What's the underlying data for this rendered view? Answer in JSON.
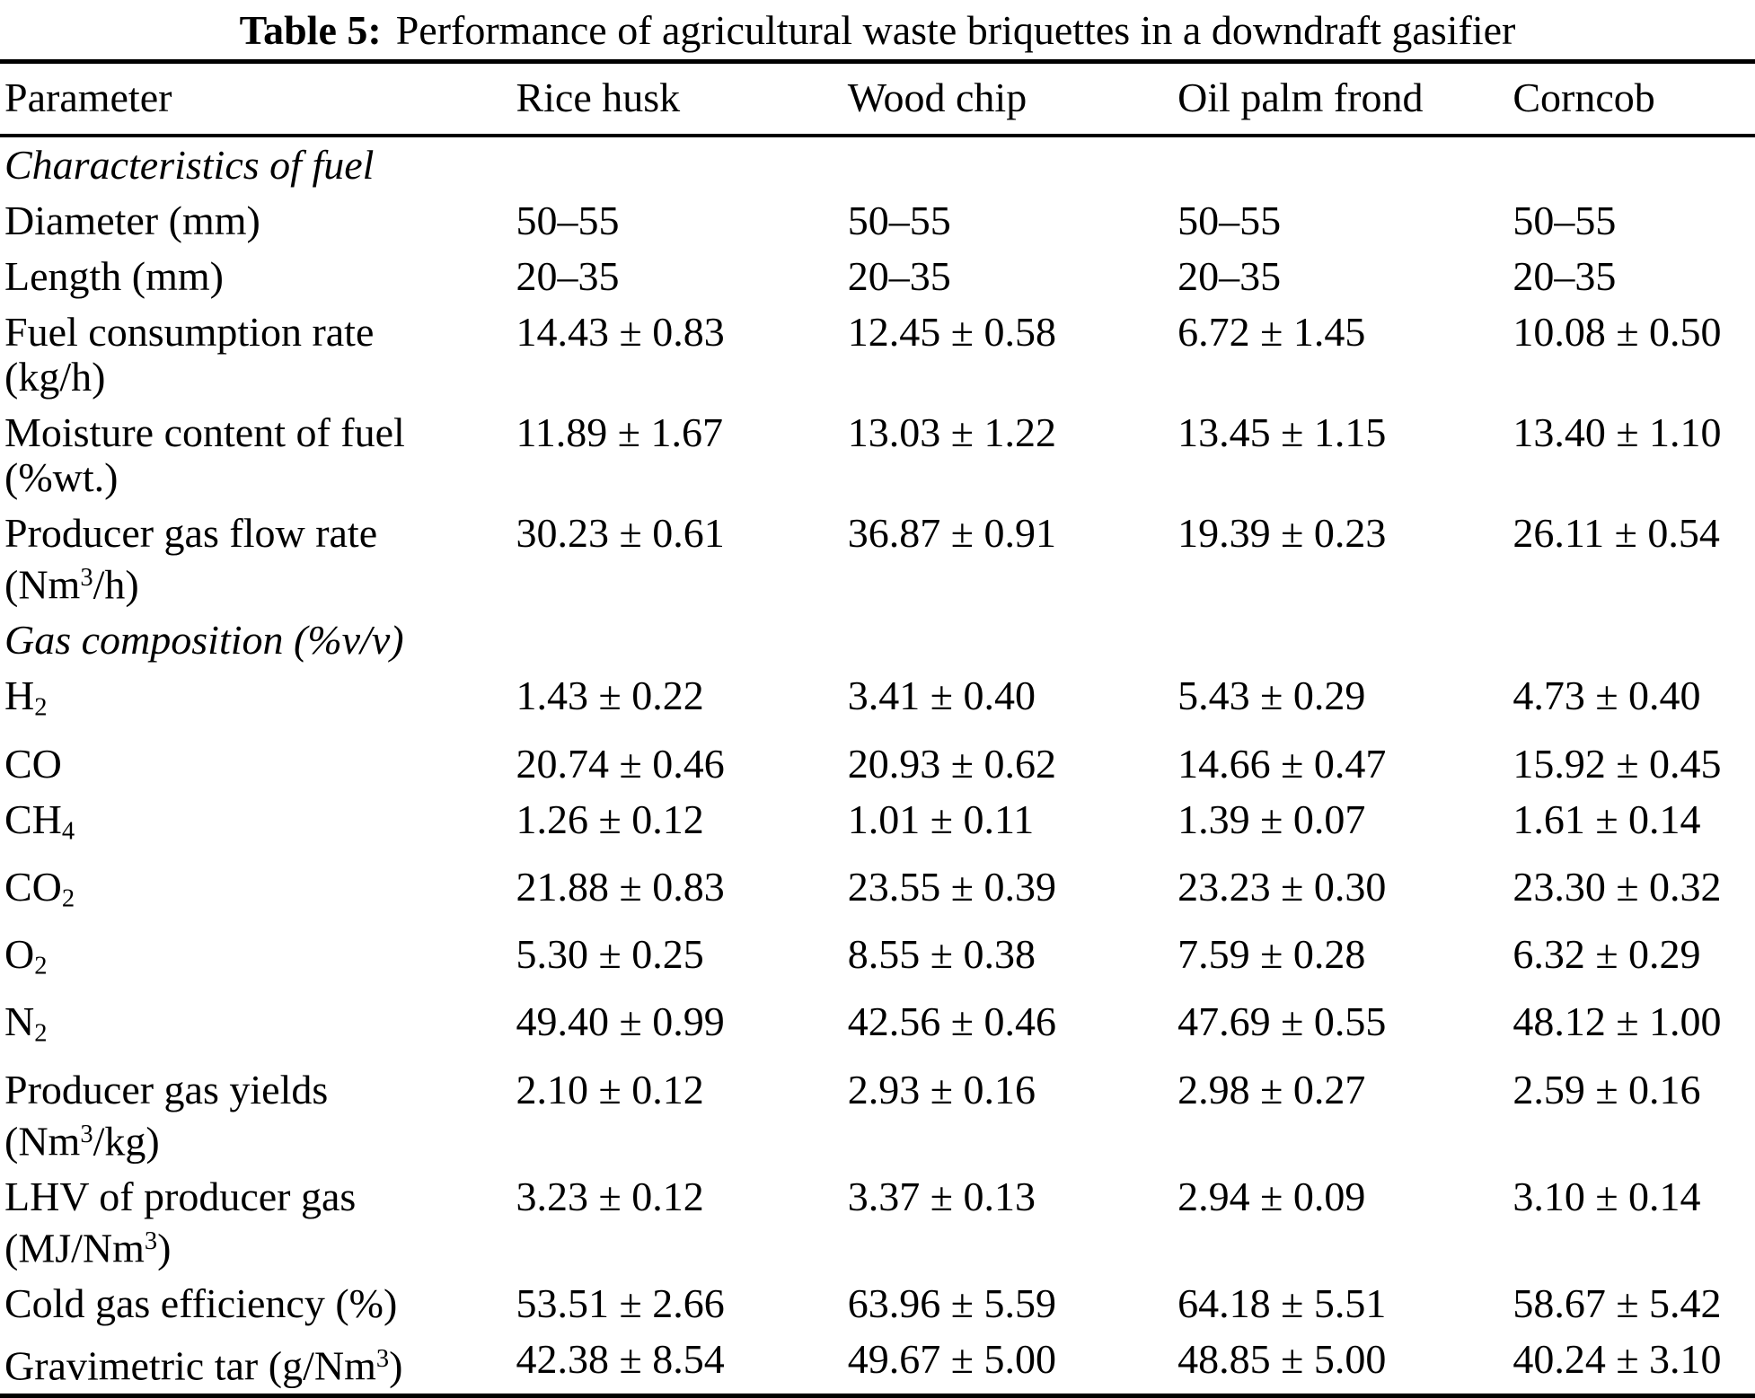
{
  "title": {
    "label": "Table 5:",
    "text": "Performance of agricultural waste briquettes in a downdraft gasifier"
  },
  "header": {
    "columns": [
      "Parameter",
      "Rice husk",
      "Wood chip",
      "Oil palm frond",
      "Corncob"
    ]
  },
  "rows": [
    {
      "type": "section",
      "segments": [
        [
          "t",
          "Characteristics of fuel"
        ]
      ]
    },
    {
      "type": "data",
      "param": [
        [
          [
            "t",
            "Diameter (mm)"
          ]
        ]
      ],
      "values": [
        "50–55",
        "50–55",
        "50–55",
        "50–55"
      ]
    },
    {
      "type": "data",
      "param": [
        [
          [
            "t",
            "Length (mm)"
          ]
        ]
      ],
      "values": [
        "20–35",
        "20–35",
        "20–35",
        "20–35"
      ]
    },
    {
      "type": "data",
      "param": [
        [
          [
            "t",
            "Fuel consumption rate"
          ]
        ],
        [
          [
            "t",
            "(kg/h)"
          ]
        ]
      ],
      "values": [
        "14.43 ± 0.83",
        "12.45 ± 0.58",
        "6.72 ± 1.45",
        "10.08 ± 0.50"
      ]
    },
    {
      "type": "data",
      "param": [
        [
          [
            "t",
            "Moisture content of fuel"
          ]
        ],
        [
          [
            "t",
            "(%wt.)"
          ]
        ]
      ],
      "values": [
        "11.89 ± 1.67",
        "13.03 ± 1.22",
        "13.45 ± 1.15",
        "13.40 ± 1.10"
      ]
    },
    {
      "type": "data",
      "param": [
        [
          [
            "t",
            "Producer gas flow rate"
          ]
        ],
        [
          [
            "t",
            "(Nm"
          ],
          [
            "sup",
            "3"
          ],
          [
            "t",
            "/h)"
          ]
        ]
      ],
      "values": [
        "30.23 ± 0.61",
        "36.87 ± 0.91",
        "19.39 ± 0.23",
        "26.11 ± 0.54"
      ]
    },
    {
      "type": "section",
      "segments": [
        [
          "t",
          "Gas composition (%v/v)"
        ]
      ]
    },
    {
      "type": "data",
      "param": [
        [
          [
            "t",
            "H"
          ],
          [
            "sub",
            "2"
          ]
        ]
      ],
      "values": [
        "1.43 ± 0.22",
        "3.41 ± 0.40",
        "5.43 ± 0.29",
        "4.73 ± 0.40"
      ]
    },
    {
      "type": "data",
      "param": [
        [
          [
            "t",
            "CO"
          ]
        ]
      ],
      "values": [
        "20.74 ± 0.46",
        "20.93 ± 0.62",
        "14.66 ± 0.47",
        "15.92 ± 0.45"
      ]
    },
    {
      "type": "data",
      "param": [
        [
          [
            "t",
            "CH"
          ],
          [
            "sub",
            "4"
          ]
        ]
      ],
      "values": [
        "1.26 ± 0.12",
        "1.01 ± 0.11",
        "1.39 ± 0.07",
        "1.61 ± 0.14"
      ]
    },
    {
      "type": "data",
      "param": [
        [
          [
            "t",
            "CO"
          ],
          [
            "sub",
            "2"
          ]
        ]
      ],
      "values": [
        "21.88 ± 0.83",
        "23.55 ± 0.39",
        "23.23 ± 0.30",
        "23.30 ± 0.32"
      ]
    },
    {
      "type": "data",
      "param": [
        [
          [
            "t",
            "O"
          ],
          [
            "sub",
            "2"
          ]
        ]
      ],
      "values": [
        "5.30 ± 0.25",
        "8.55 ± 0.38",
        "7.59 ± 0.28",
        "6.32 ± 0.29"
      ]
    },
    {
      "type": "data",
      "param": [
        [
          [
            "t",
            "N"
          ],
          [
            "sub",
            "2"
          ]
        ]
      ],
      "values": [
        "49.40 ± 0.99",
        "42.56 ± 0.46",
        "47.69 ± 0.55",
        "48.12 ± 1.00"
      ]
    },
    {
      "type": "data",
      "param": [
        [
          [
            "t",
            "Producer gas yields"
          ]
        ],
        [
          [
            "t",
            "(Nm"
          ],
          [
            "sup",
            "3"
          ],
          [
            "t",
            "/kg)"
          ]
        ]
      ],
      "values": [
        "2.10 ± 0.12",
        "2.93 ± 0.16",
        "2.98 ± 0.27",
        "2.59 ± 0.16"
      ]
    },
    {
      "type": "data",
      "param": [
        [
          [
            "t",
            "LHV of producer gas"
          ]
        ],
        [
          [
            "t",
            "(MJ/Nm"
          ],
          [
            "sup",
            "3"
          ],
          [
            "t",
            ")"
          ]
        ]
      ],
      "values": [
        "3.23 ± 0.12",
        "3.37 ± 0.13",
        "2.94 ± 0.09",
        "3.10 ± 0.14"
      ]
    },
    {
      "type": "data",
      "param": [
        [
          [
            "t",
            "Cold gas efficiency (%)"
          ]
        ]
      ],
      "values": [
        "53.51 ± 2.66",
        "63.96 ± 5.59",
        "64.18 ± 5.51",
        "58.67 ± 5.42"
      ]
    },
    {
      "type": "data",
      "param": [
        [
          [
            "t",
            "Gravimetric tar (g/Nm"
          ],
          [
            "sup",
            "3"
          ],
          [
            "t",
            ")"
          ]
        ]
      ],
      "values": [
        "42.38 ± 8.54",
        "49.67 ± 5.00",
        "48.85 ± 5.00",
        "40.24 ± 3.10"
      ]
    }
  ]
}
